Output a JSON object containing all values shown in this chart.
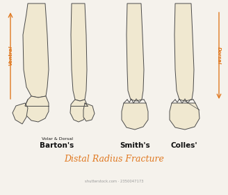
{
  "bg_color": "#f5f2ec",
  "bone_fill": "#f0e8d0",
  "bone_edge": "#4a4a4a",
  "orange_color": "#e07820",
  "title": "Distal Radius Fracture",
  "subtitle_barton": "Volar & Dorsal",
  "label_barton": "Barton's",
  "label_smith": "Smith's",
  "label_colles": "Colles'",
  "label_ventral": "Ventral",
  "label_dorsal": "Dorsal",
  "watermark": "shutterstock.com · 2350047173",
  "lw": 0.7
}
